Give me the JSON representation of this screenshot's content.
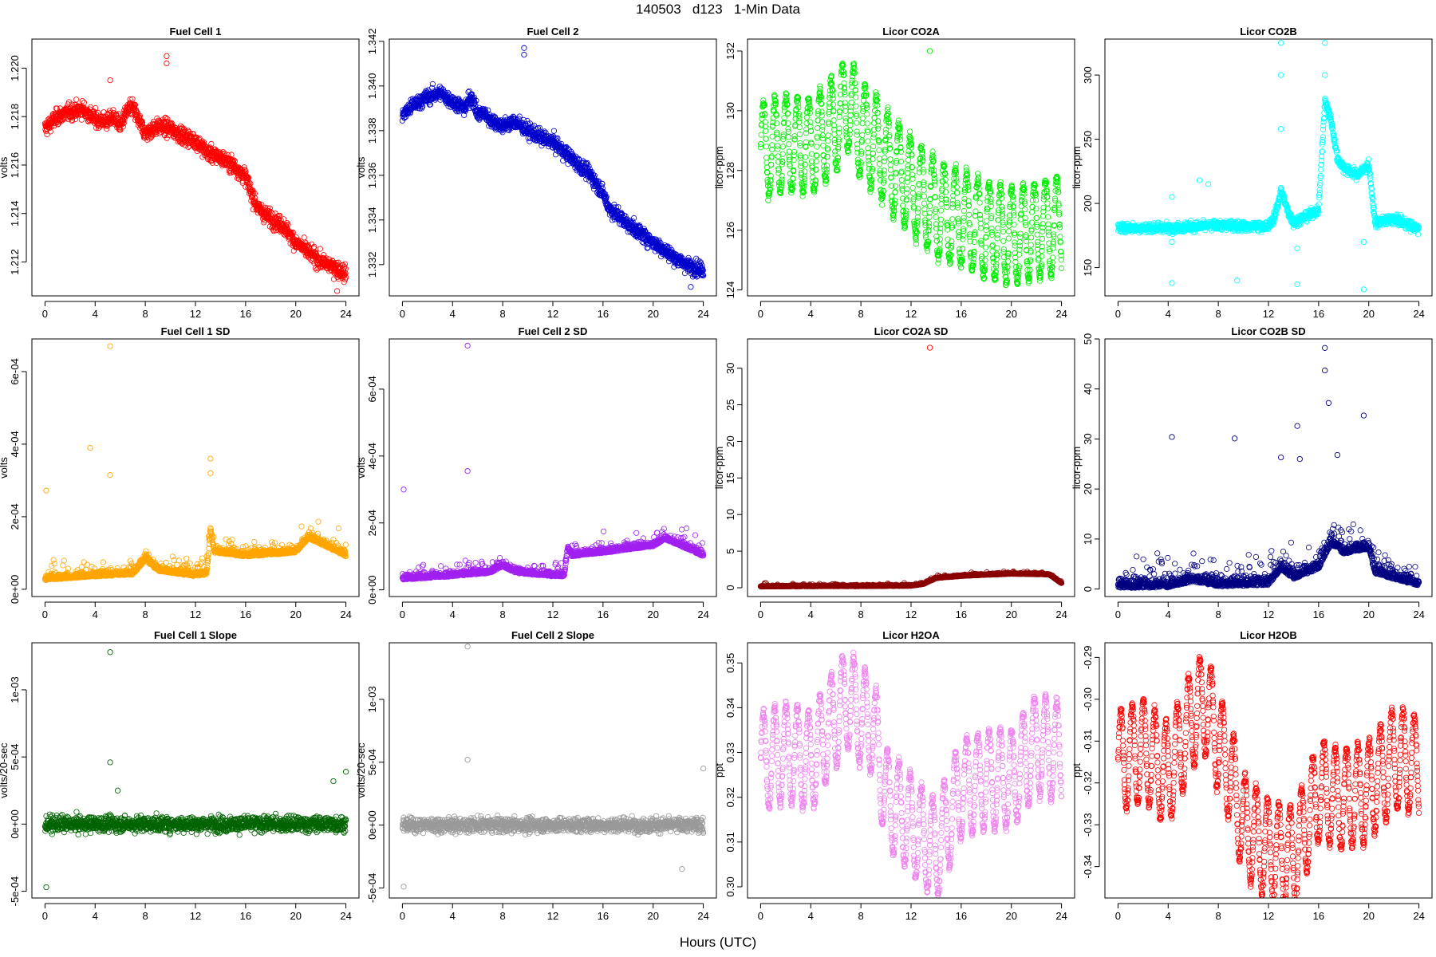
{
  "figure": {
    "title": "140503   d123   1-Min Data",
    "xlabel": "Hours (UTC)"
  },
  "chart_data": [
    {
      "type": "scatter",
      "title": "Fuel Cell 1",
      "ylabel": "volts",
      "color": "#ff0000",
      "xlim": [
        0,
        24
      ],
      "x_ticks": [
        0,
        4,
        8,
        12,
        16,
        20,
        24
      ],
      "ylim": [
        1.2106,
        1.2212
      ],
      "y_ticks": [
        1.212,
        1.214,
        1.216,
        1.218,
        1.22
      ],
      "y_tick_labels": [
        "1.212",
        "1.214",
        "1.216",
        "1.218",
        "1.220"
      ],
      "trend": {
        "x": [
          0,
          1,
          2,
          3,
          4,
          5,
          5.5,
          6,
          6.5,
          7,
          7.5,
          8,
          9,
          10,
          11,
          12,
          13,
          14,
          15,
          16,
          16.5,
          17,
          18,
          19,
          20,
          21,
          22,
          23,
          24
        ],
        "y": [
          1.2175,
          1.218,
          1.2182,
          1.2183,
          1.2179,
          1.2178,
          1.218,
          1.2176,
          1.2182,
          1.2184,
          1.2178,
          1.2173,
          1.2176,
          1.2175,
          1.2172,
          1.217,
          1.2165,
          1.2163,
          1.216,
          1.2155,
          1.2148,
          1.2142,
          1.2138,
          1.2135,
          1.2128,
          1.2124,
          1.212,
          1.2118,
          1.2115
        ]
      },
      "noise": 0.00035,
      "outliers": [
        [
          9.7,
          1.2205
        ],
        [
          9.7,
          1.2202
        ],
        [
          5.2,
          1.2195
        ],
        [
          23.3,
          1.2108
        ]
      ]
    },
    {
      "type": "scatter",
      "title": "Fuel Cell 2",
      "ylabel": "volts",
      "color": "#0000cc",
      "xlim": [
        0,
        24
      ],
      "x_ticks": [
        0,
        4,
        8,
        12,
        16,
        20,
        24
      ],
      "ylim": [
        1.3306,
        1.3421
      ],
      "y_ticks": [
        1.332,
        1.334,
        1.336,
        1.338,
        1.34,
        1.342
      ],
      "y_tick_labels": [
        "1.332",
        "1.334",
        "1.336",
        "1.338",
        "1.340",
        "1.342"
      ],
      "trend": {
        "x": [
          0,
          1,
          2,
          3,
          4,
          5,
          5.5,
          6,
          6.5,
          7,
          8,
          9,
          10,
          11,
          12,
          13,
          14,
          15,
          16,
          16.5,
          17,
          18,
          19,
          20,
          21,
          22,
          23,
          24
        ],
        "y": [
          1.3387,
          1.3392,
          1.3395,
          1.3397,
          1.3393,
          1.339,
          1.3396,
          1.3387,
          1.3388,
          1.3385,
          1.3382,
          1.3384,
          1.338,
          1.3377,
          1.3375,
          1.337,
          1.3365,
          1.336,
          1.3352,
          1.3345,
          1.3343,
          1.3338,
          1.3334,
          1.333,
          1.3326,
          1.3322,
          1.3319,
          1.3318
        ]
      },
      "noise": 0.00035,
      "outliers": [
        [
          9.7,
          1.3417
        ],
        [
          9.7,
          1.3414
        ],
        [
          23.0,
          1.331
        ]
      ]
    },
    {
      "type": "scatter",
      "title": "Licor CO2A",
      "ylabel": "licor-ppm",
      "color": "#00ee00",
      "xlim": [
        0,
        24
      ],
      "x_ticks": [
        0,
        4,
        8,
        12,
        16,
        20,
        24
      ],
      "ylim": [
        123.8,
        132.4
      ],
      "y_ticks": [
        124,
        126,
        128,
        130,
        132
      ],
      "y_tick_labels": [
        "124",
        "126",
        "128",
        "130",
        "132"
      ],
      "trend": {
        "x": [
          0,
          2,
          4,
          6,
          7,
          8,
          9,
          10,
          12,
          14,
          16,
          18,
          20,
          22,
          24
        ],
        "y": [
          128.7,
          128.9,
          128.8,
          129.6,
          130.3,
          129.3,
          129.0,
          128.4,
          127.5,
          126.7,
          126.4,
          126.0,
          125.8,
          126.0,
          126.2
        ]
      },
      "oscillation": {
        "amplitude": 1.6,
        "period_hours": 0.9
      },
      "noise": 0.2,
      "outliers": [
        [
          13.5,
          132.0
        ],
        [
          0.6,
          127.0
        ]
      ]
    },
    {
      "type": "scatter",
      "title": "Licor CO2B",
      "ylabel": "licor-ppm",
      "color": "#00ffff",
      "xlim": [
        0,
        24
      ],
      "x_ticks": [
        0,
        4,
        8,
        12,
        16,
        20,
        24
      ],
      "ylim": [
        128,
        328
      ],
      "y_ticks": [
        150,
        200,
        250,
        300
      ],
      "y_tick_labels": [
        "150",
        "200",
        "250",
        "300"
      ],
      "trend": {
        "x": [
          0,
          4,
          8,
          12,
          12.5,
          13,
          13.5,
          14,
          16,
          16.5,
          17,
          17.5,
          18,
          19,
          20,
          20.5,
          22,
          24
        ],
        "y": [
          181,
          181,
          183,
          182,
          190,
          210,
          195,
          185,
          195,
          280,
          265,
          235,
          228,
          222,
          230,
          185,
          188,
          180
        ]
      },
      "noise": 4,
      "outliers": [
        [
          4.3,
          205
        ],
        [
          4.3,
          170
        ],
        [
          4.3,
          138
        ],
        [
          9.5,
          140
        ],
        [
          13,
          325
        ],
        [
          13,
          300
        ],
        [
          13,
          258
        ],
        [
          14.3,
          137
        ],
        [
          14.3,
          165
        ],
        [
          16.5,
          325
        ],
        [
          16.5,
          300
        ],
        [
          19.6,
          133
        ],
        [
          19.6,
          170
        ],
        [
          6.5,
          218
        ],
        [
          7.2,
          215
        ]
      ]
    },
    {
      "type": "scatter",
      "title": "Fuel Cell 1 SD",
      "ylabel": "volts",
      "color": "#ffa500",
      "xlim": [
        0,
        24
      ],
      "x_ticks": [
        0,
        4,
        8,
        12,
        16,
        20,
        24
      ],
      "ylim": [
        -2e-05,
        0.00069
      ],
      "y_ticks": [
        0,
        0.0002,
        0.0004,
        0.0006
      ],
      "y_tick_labels": [
        "0e+00",
        "2e-04",
        "4e-04",
        "6e-04"
      ],
      "trend": {
        "x": [
          0,
          4,
          7,
          8,
          9,
          12,
          12.9,
          13.2,
          13.5,
          16,
          20,
          21,
          24
        ],
        "y": [
          2.5e-05,
          3.5e-05,
          4e-05,
          8e-05,
          5e-05,
          3.5e-05,
          4e-05,
          0.00016,
          0.0001,
          9e-05,
          0.0001,
          0.00014,
          9e-05
        ]
      },
      "noise": 2.5e-05,
      "outliers": [
        [
          5.2,
          0.00067
        ],
        [
          3.6,
          0.00039
        ],
        [
          5.2,
          0.000315
        ],
        [
          0.1,
          0.000272
        ],
        [
          13.2,
          0.00036
        ],
        [
          13.2,
          0.00032
        ]
      ]
    },
    {
      "type": "scatter",
      "title": "Fuel Cell 2 SD",
      "ylabel": "volts",
      "color": "#a020f0",
      "xlim": [
        0,
        24
      ],
      "x_ticks": [
        0,
        4,
        8,
        12,
        16,
        20,
        24
      ],
      "ylim": [
        -2e-05,
        0.00075
      ],
      "y_ticks": [
        0,
        0.0002,
        0.0004,
        0.0006
      ],
      "y_tick_labels": [
        "0e+00",
        "2e-04",
        "4e-04",
        "6e-04"
      ],
      "trend": {
        "x": [
          0,
          4,
          7,
          8,
          9,
          12,
          12.9,
          13.2,
          13.5,
          16,
          20,
          21,
          24
        ],
        "y": [
          3e-05,
          4e-05,
          5e-05,
          7e-05,
          5e-05,
          4e-05,
          4e-05,
          0.00012,
          0.0001,
          0.00011,
          0.00013,
          0.00015,
          0.0001
        ]
      },
      "noise": 2.5e-05,
      "outliers": [
        [
          5.2,
          0.00073
        ],
        [
          5.2,
          0.000355
        ],
        [
          0.1,
          0.0003
        ]
      ]
    },
    {
      "type": "scatter",
      "title": "Licor CO2A SD",
      "ylabel": "licor-ppm",
      "color": "#8b0000",
      "xlim": [
        0,
        24
      ],
      "x_ticks": [
        0,
        4,
        8,
        12,
        16,
        20,
        24
      ],
      "ylim": [
        -1.2,
        34
      ],
      "y_ticks": [
        0,
        5,
        10,
        15,
        20,
        25,
        30
      ],
      "y_tick_labels": [
        "0",
        "5",
        "10",
        "15",
        "20",
        "25",
        "30"
      ],
      "trend": {
        "x": [
          0,
          4,
          8,
          12,
          13,
          14,
          16,
          20,
          23,
          24
        ],
        "y": [
          0.15,
          0.2,
          0.2,
          0.25,
          0.5,
          1.3,
          1.6,
          1.9,
          1.8,
          0.6
        ]
      },
      "noise": 0.2,
      "outliers": [
        [
          13.5,
          32.8
        ]
      ],
      "outlier_color": "#ff0000"
    },
    {
      "type": "scatter",
      "title": "Licor CO2B SD",
      "ylabel": "licor-ppm",
      "color": "#000080",
      "xlim": [
        0,
        24
      ],
      "x_ticks": [
        0,
        4,
        8,
        12,
        16,
        20,
        24
      ],
      "ylim": [
        -1.5,
        50
      ],
      "y_ticks": [
        0,
        10,
        20,
        30,
        40,
        50
      ],
      "y_tick_labels": [
        "0",
        "10",
        "20",
        "30",
        "40",
        "50"
      ],
      "trend": {
        "x": [
          0,
          4,
          6,
          8,
          12,
          13,
          14,
          16,
          17,
          18,
          20,
          20.5,
          22,
          24
        ],
        "y": [
          0.2,
          0.3,
          1.5,
          0.5,
          0.8,
          4,
          2,
          4,
          9,
          7,
          8,
          3,
          2,
          0.6
        ]
      },
      "noise": 3,
      "outliers": [
        [
          16.5,
          48.2
        ],
        [
          16.5,
          43.7
        ],
        [
          16.8,
          37.2
        ],
        [
          19.6,
          34.7
        ],
        [
          4.3,
          30.4
        ],
        [
          9.3,
          30.1
        ],
        [
          14.3,
          32.6
        ],
        [
          13,
          26.3
        ],
        [
          17.5,
          26.8
        ],
        [
          14.5,
          26.0
        ]
      ]
    },
    {
      "type": "scatter",
      "title": "Fuel Cell 1 Slope",
      "ylabel": "volts/20-sec",
      "color": "#006400",
      "xlim": [
        0,
        24
      ],
      "x_ticks": [
        0,
        4,
        8,
        12,
        16,
        20,
        24
      ],
      "ylim": [
        -0.00055,
        0.00135
      ],
      "y_ticks": [
        -0.0005,
        0,
        0.0005,
        0.001
      ],
      "y_tick_labels": [
        "-5e-04",
        "0e+00",
        "5e-04",
        "1e-03"
      ],
      "trend": {
        "x": [
          0,
          24
        ],
        "y": [
          0,
          0
        ]
      },
      "noise": 6e-05,
      "outliers": [
        [
          5.2,
          0.00128
        ],
        [
          5.2,
          0.00046
        ],
        [
          0.1,
          -0.00047
        ],
        [
          24,
          0.00039
        ],
        [
          23,
          0.00032
        ],
        [
          5.8,
          0.00025
        ]
      ]
    },
    {
      "type": "scatter",
      "title": "Fuel Cell 2 Slope",
      "ylabel": "volts/20-sec",
      "color": "#999999",
      "xlim": [
        0,
        24
      ],
      "x_ticks": [
        0,
        4,
        8,
        12,
        16,
        20,
        24
      ],
      "ylim": [
        -0.00058,
        0.00145
      ],
      "y_ticks": [
        -0.0005,
        0,
        0.0005,
        0.001
      ],
      "y_tick_labels": [
        "-5e-04",
        "0e+00",
        "5e-04",
        "1e-03"
      ],
      "trend": {
        "x": [
          0,
          24
        ],
        "y": [
          0,
          0
        ]
      },
      "noise": 6e-05,
      "outliers": [
        [
          5.2,
          0.00142
        ],
        [
          5.2,
          0.00052
        ],
        [
          0.1,
          -0.00049
        ],
        [
          24,
          0.00045
        ],
        [
          22.3,
          -0.00035
        ]
      ]
    },
    {
      "type": "scatter",
      "title": "Licor H2OA",
      "ylabel": "ppt",
      "color": "#ee82ee",
      "xlim": [
        0,
        24
      ],
      "x_ticks": [
        0,
        4,
        8,
        12,
        16,
        20,
        24
      ],
      "ylim": [
        0.2975,
        0.3545
      ],
      "y_ticks": [
        0.3,
        0.31,
        0.32,
        0.33,
        0.34,
        0.35
      ],
      "y_tick_labels": [
        "0.30",
        "0.31",
        "0.32",
        "0.33",
        "0.34",
        "0.35"
      ],
      "trend": {
        "x": [
          0,
          2,
          4,
          6,
          7,
          8,
          9,
          10,
          12,
          14,
          16,
          18,
          20,
          22,
          24
        ],
        "y": [
          0.328,
          0.33,
          0.328,
          0.338,
          0.342,
          0.338,
          0.336,
          0.32,
          0.314,
          0.308,
          0.322,
          0.324,
          0.324,
          0.332,
          0.33
        ]
      },
      "oscillation": {
        "amplitude": 0.011,
        "period_hours": 0.9
      },
      "noise": 0.0012,
      "outliers": []
    },
    {
      "type": "scatter",
      "title": "Licor H2OB",
      "ylabel": "ppt",
      "color": "#ff0000",
      "xlim": [
        0,
        24
      ],
      "x_ticks": [
        0,
        4,
        8,
        12,
        16,
        20,
        24
      ],
      "ylim": [
        -0.3475,
        -0.2865
      ],
      "y_ticks": [
        -0.34,
        -0.33,
        -0.32,
        -0.31,
        -0.3,
        -0.29
      ],
      "y_tick_labels": [
        "-0.34",
        "-0.33",
        "-0.32",
        "-0.31",
        "-0.30",
        "-0.29"
      ],
      "trend": {
        "x": [
          0,
          2,
          4,
          6,
          7,
          8,
          9,
          10,
          12,
          14,
          16,
          18,
          20,
          22,
          24
        ],
        "y": [
          -0.315,
          -0.312,
          -0.318,
          -0.304,
          -0.301,
          -0.31,
          -0.318,
          -0.33,
          -0.336,
          -0.338,
          -0.322,
          -0.324,
          -0.322,
          -0.314,
          -0.316
        ]
      },
      "oscillation": {
        "amplitude": 0.012,
        "period_hours": 0.9
      },
      "noise": 0.0012,
      "outliers": []
    }
  ]
}
